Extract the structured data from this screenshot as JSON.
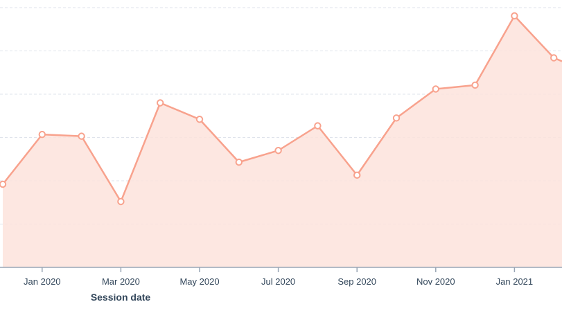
{
  "chart_data": {
    "type": "area",
    "xlabel": "Session date",
    "ylabel": "",
    "x": [
      "Dec 2019",
      "Jan 2020",
      "Feb 2020",
      "Mar 2020",
      "Apr 2020",
      "May 2020",
      "Jun 2020",
      "Jul 2020",
      "Aug 2020",
      "Sep 2020",
      "Oct 2020",
      "Nov 2020",
      "Dec 2020",
      "Jan 2021",
      "Feb 2021"
    ],
    "x_tick_labels": [
      "Jan 2020",
      "Mar 2020",
      "May 2020",
      "Jul 2020",
      "Sep 2020",
      "Nov 2020",
      "Jan 2021"
    ],
    "series": [
      {
        "values": [
          0.92,
          2.07,
          2.03,
          0.52,
          2.8,
          2.42,
          1.43,
          1.7,
          2.27,
          1.13,
          2.45,
          3.12,
          3.21,
          4.81,
          3.84
        ]
      }
    ],
    "ylim": [
      -1,
      6
    ],
    "grid": true,
    "colors": {
      "line": "#f8a28d",
      "fill": "#fde3dc",
      "grid": "#dfe3eb",
      "axis": "#99a5b5",
      "text": "#33475b"
    }
  }
}
